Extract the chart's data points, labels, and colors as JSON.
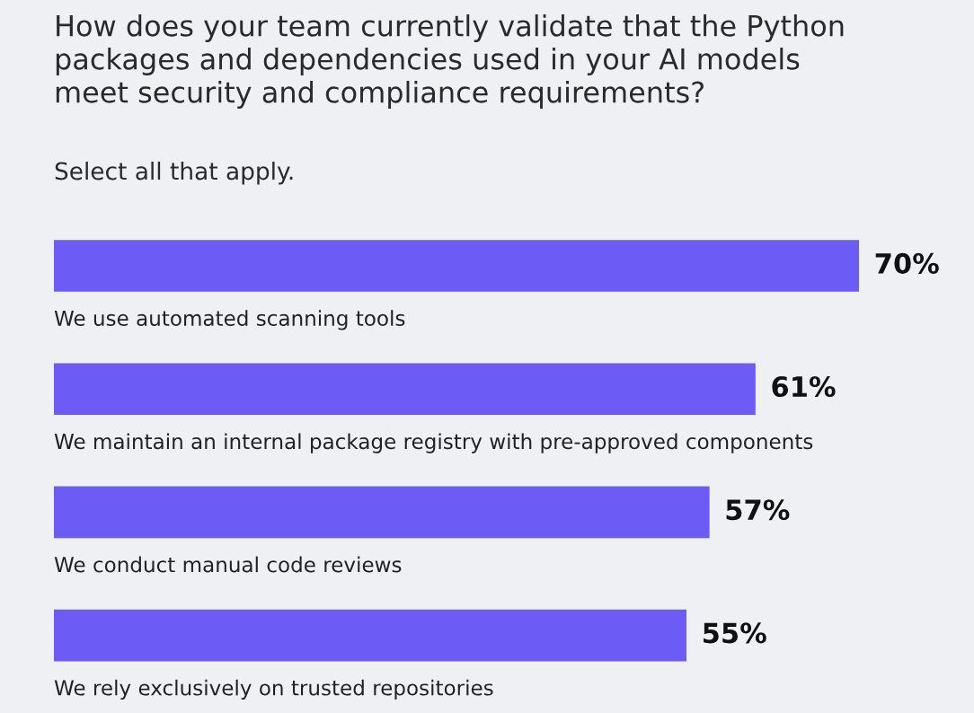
{
  "chart_data": {
    "type": "bar",
    "orientation": "horizontal",
    "title": "How does your team currently validate that the Python\npackages and dependencies used in your AI models\nmeet security and compliance requirements?",
    "subtitle": "Select all that apply.",
    "categories": [
      "We use automated scanning tools",
      "We maintain an internal package registry with pre-approved components",
      "We conduct manual code reviews",
      "We rely exclusively on trusted repositories"
    ],
    "values": [
      70,
      61,
      57,
      55
    ],
    "value_labels": [
      "70%",
      "61%",
      "57%",
      "55%"
    ],
    "color": "#6c5cf5",
    "xlim": [
      0,
      80
    ],
    "tick_labels": false
  }
}
